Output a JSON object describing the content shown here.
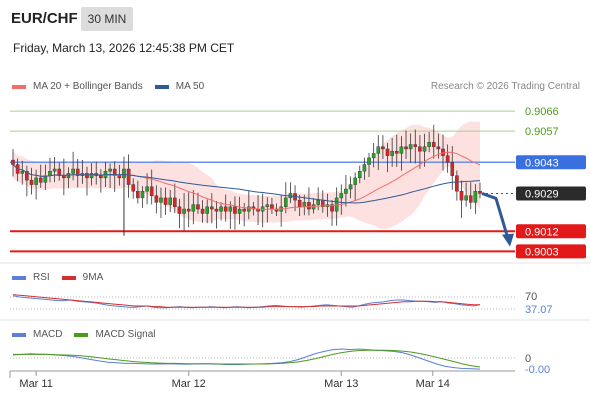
{
  "header": {
    "pair": "EUR/CHF",
    "timeframe": "30 MIN",
    "datetime": "Friday, March 13, 2026 12:45:38 PM CET"
  },
  "legend": {
    "ma20_label": "MA 20 + Bollinger Bands",
    "ma50_label": "MA 50",
    "ma20_color": "#f36c6c",
    "ma50_color": "#2e5a96"
  },
  "credit": "Research © 2026 Trading Central",
  "chart_data": {
    "type": "candlestick",
    "ylim": [
      0.9,
      0.9071
    ],
    "levels": [
      {
        "label": "0.9066",
        "value": 0.9066,
        "kind": "resistance-green"
      },
      {
        "label": "0.9057",
        "value": 0.9057,
        "kind": "resistance-green"
      },
      {
        "label": "0.9043",
        "value": 0.9043,
        "kind": "pivot-blue"
      },
      {
        "label": "0.9029",
        "value": 0.9029,
        "kind": "last-price"
      },
      {
        "label": "0.9012",
        "value": 0.9012,
        "kind": "target-red"
      },
      {
        "label": "0.9003",
        "value": 0.9003,
        "kind": "target-red"
      }
    ],
    "closes": [
      0.9042,
      0.9038,
      0.9039,
      0.9035,
      0.9033,
      0.9036,
      0.9034,
      0.9037,
      0.9039,
      0.904,
      0.9037,
      0.9036,
      0.9038,
      0.904,
      0.9037,
      0.9038,
      0.9036,
      0.9038,
      0.9037,
      0.9036,
      0.9039,
      0.904,
      0.9037,
      0.9036,
      0.904,
      0.9033,
      0.903,
      0.9027,
      0.903,
      0.9032,
      0.9028,
      0.9025,
      0.9027,
      0.9024,
      0.9027,
      0.9023,
      0.902,
      0.9022,
      0.9021,
      0.9024,
      0.9022,
      0.902,
      0.9023,
      0.9022,
      0.9021,
      0.9023,
      0.9021,
      0.9023,
      0.902,
      0.9022,
      0.9021,
      0.9023,
      0.9022,
      0.9021,
      0.9023,
      0.9024,
      0.9022,
      0.9021,
      0.9023,
      0.9027,
      0.9029,
      0.9026,
      0.9023,
      0.9025,
      0.9022,
      0.9024,
      0.9026,
      0.9023,
      0.9024,
      0.9021,
      0.9027,
      0.9029,
      0.9031,
      0.9033,
      0.9036,
      0.9039,
      0.9042,
      0.9045,
      0.9047,
      0.905,
      0.9049,
      0.9046,
      0.9048,
      0.9047,
      0.905,
      0.9049,
      0.9051,
      0.905,
      0.9048,
      0.905,
      0.9052,
      0.905,
      0.9049,
      0.9046,
      0.9043,
      0.9037,
      0.903,
      0.9026,
      0.9028,
      0.9025,
      0.903,
      0.9029
    ],
    "x_labels": [
      {
        "label": "Mar 11",
        "index": 5
      },
      {
        "label": "Mar 12",
        "index": 38
      },
      {
        "label": "Mar 13",
        "index": 71
      },
      {
        "label": "Mar 14",
        "index": 91
      }
    ],
    "rsi": {
      "title": "RSI",
      "ma_title": "9MA",
      "level_label": "70",
      "value_label": "37.07",
      "ylim": [
        0,
        100
      ],
      "level": 70,
      "rsi_color": "#5b7fd6",
      "ma_color": "#d43030",
      "values": [
        52,
        50,
        49,
        48,
        47,
        46,
        45,
        44,
        44,
        45,
        43,
        42,
        41,
        40,
        38,
        36,
        35,
        34,
        33,
        33,
        34,
        35,
        33,
        32,
        32,
        33,
        34,
        33,
        32,
        33,
        33,
        34,
        33,
        32,
        33,
        34,
        33,
        32,
        33,
        34,
        35,
        36,
        35,
        34,
        34,
        33,
        34,
        35,
        36,
        37,
        36,
        35,
        34,
        33,
        35,
        38,
        40,
        41,
        42,
        44,
        45,
        45,
        44,
        43,
        43,
        42,
        41,
        42,
        40,
        39,
        37,
        36,
        35,
        37
      ],
      "ma": [
        54,
        53,
        52,
        51,
        50,
        49,
        48,
        47,
        46,
        45,
        44,
        43,
        42,
        41,
        40,
        39,
        38,
        37,
        36,
        35,
        35,
        35,
        34,
        34,
        33,
        33,
        33,
        33,
        33,
        33,
        33,
        33,
        33,
        33,
        33,
        33,
        33,
        33,
        33,
        33,
        34,
        34,
        34,
        34,
        34,
        34,
        34,
        34,
        35,
        35,
        35,
        35,
        35,
        35,
        35,
        36,
        37,
        38,
        39,
        40,
        41,
        42,
        42,
        43,
        43,
        43,
        42,
        42,
        41,
        40,
        39,
        38,
        37,
        37
      ]
    },
    "macd": {
      "title": "MACD",
      "signal_title": "MACD Signal",
      "level_label": "0",
      "value_label": "-0.00",
      "ylim": [
        -1,
        1
      ],
      "macd_color": "#5b7fd6",
      "signal_color": "#4c9a1e",
      "values": [
        0.1,
        0.12,
        0.14,
        0.13,
        0.12,
        0.1,
        0.08,
        0.05,
        0.0,
        -0.05,
        -0.1,
        -0.14,
        -0.16,
        -0.18,
        -0.18,
        -0.19,
        -0.2,
        -0.2,
        -0.19,
        -0.2,
        -0.21,
        -0.2,
        -0.19,
        -0.2,
        -0.21,
        -0.22,
        -0.22,
        -0.21,
        -0.2,
        -0.19,
        -0.18,
        -0.16,
        -0.12,
        -0.05,
        0.05,
        0.15,
        0.22,
        0.28,
        0.3,
        0.28,
        0.3,
        0.28,
        0.26,
        0.24,
        0.22,
        0.18,
        0.1,
        0.0,
        -0.1,
        -0.2,
        -0.28,
        -0.32,
        -0.35,
        -0.36,
        -0.37
      ],
      "signal": [
        0.12,
        0.12,
        0.12,
        0.12,
        0.12,
        0.11,
        0.1,
        0.09,
        0.07,
        0.04,
        0.01,
        -0.03,
        -0.06,
        -0.09,
        -0.12,
        -0.14,
        -0.16,
        -0.17,
        -0.18,
        -0.18,
        -0.19,
        -0.19,
        -0.19,
        -0.19,
        -0.2,
        -0.2,
        -0.2,
        -0.2,
        -0.2,
        -0.2,
        -0.19,
        -0.18,
        -0.16,
        -0.13,
        -0.08,
        -0.02,
        0.05,
        0.12,
        0.18,
        0.22,
        0.25,
        0.26,
        0.26,
        0.26,
        0.25,
        0.23,
        0.2,
        0.15,
        0.09,
        0.02,
        -0.05,
        -0.12,
        -0.2,
        -0.26,
        -0.3
      ]
    }
  }
}
